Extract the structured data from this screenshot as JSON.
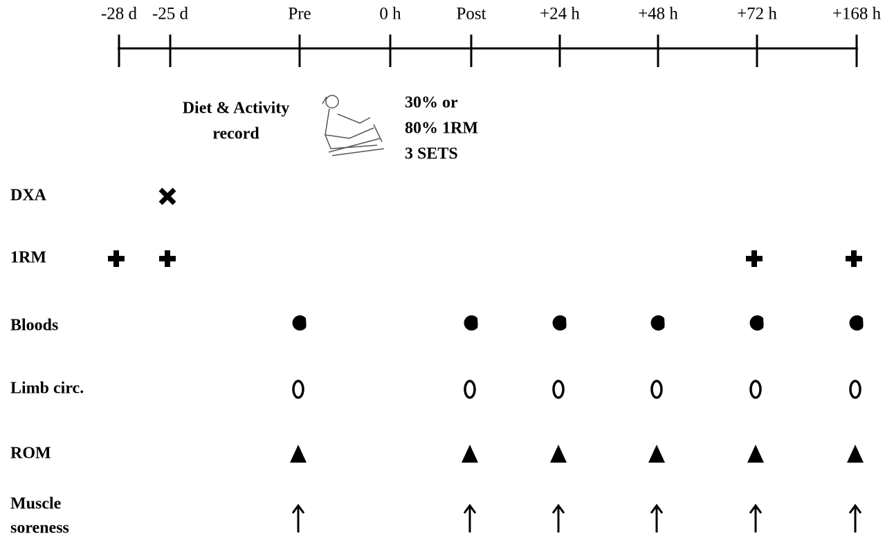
{
  "timeline": {
    "labels": [
      "-28 d",
      "-25 d",
      "Pre",
      "0 h",
      "Post",
      "+24 h",
      "+48 h",
      "+72 h",
      "+168 h"
    ]
  },
  "annotations": {
    "diet": [
      "Diet & Activity",
      "record"
    ],
    "exercise": [
      "30% or",
      "80% 1RM",
      "3 SETS"
    ]
  },
  "rows": [
    {
      "lines": [
        "DXA"
      ]
    },
    {
      "lines": [
        "1RM"
      ]
    },
    {
      "lines": [
        "Bloods"
      ]
    },
    {
      "lines": [
        "Limb circ."
      ]
    },
    {
      "lines": [
        "ROM"
      ]
    },
    {
      "lines": [
        "Muscle",
        "soreness"
      ]
    }
  ]
}
